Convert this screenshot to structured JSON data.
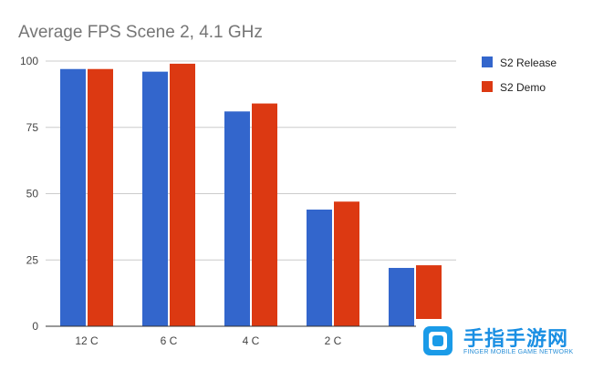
{
  "chart_data": {
    "type": "bar",
    "title": "Average FPS Scene 2, 4.1 GHz",
    "categories": [
      "12 C",
      "6 C",
      "4 C",
      "2 C",
      ""
    ],
    "series": [
      {
        "name": "S2 Release",
        "color": "#3366cc",
        "values": [
          97,
          96,
          81,
          44,
          22
        ]
      },
      {
        "name": "S2 Demo",
        "color": "#dc3912",
        "values": [
          97,
          99,
          84,
          47,
          23
        ]
      }
    ],
    "ylim": [
      0,
      100
    ],
    "yticks": [
      "0",
      "25",
      "50",
      "75",
      "100"
    ],
    "ytick_values": [
      0,
      25,
      50,
      75,
      100
    ],
    "grid": true,
    "legend_position": "right"
  },
  "watermark": {
    "main": "手指手游网",
    "sub": "FINGER MOBILE GAME NETWORK"
  }
}
